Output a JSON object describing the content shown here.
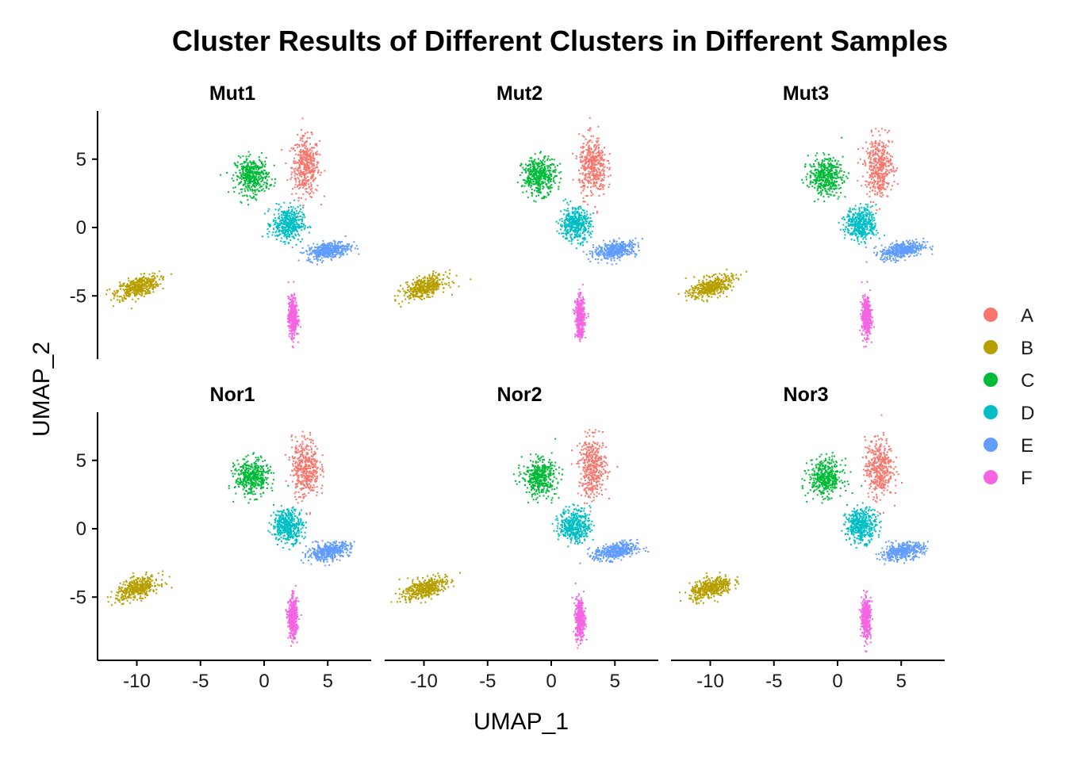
{
  "chart_data": {
    "type": "scatter",
    "title": "Cluster Results of Different Clusters in Different Samples",
    "xlabel": "UMAP_1",
    "ylabel": "UMAP_2",
    "xlim": [
      -13,
      8.5
    ],
    "ylim": [
      -9.5,
      8.5
    ],
    "xticks": [
      -10,
      -5,
      0,
      5
    ],
    "yticks": [
      -5,
      0,
      5
    ],
    "grid": false,
    "legend_position": "right",
    "panels": [
      "Mut1",
      "Mut2",
      "Mut3",
      "Nor1",
      "Nor2",
      "Nor3"
    ],
    "clusters": [
      {
        "name": "A",
        "color": "#F8766D",
        "center": [
          3.2,
          4.5
        ],
        "spread": [
          0.9,
          1.8
        ]
      },
      {
        "name": "B",
        "color": "#B79F00",
        "center": [
          -10.0,
          -4.3
        ],
        "spread": [
          1.4,
          0.6
        ]
      },
      {
        "name": "C",
        "color": "#00BA38",
        "center": [
          -1.0,
          3.8
        ],
        "spread": [
          1.1,
          1.1
        ]
      },
      {
        "name": "D",
        "color": "#00BFC4",
        "center": [
          1.8,
          0.3
        ],
        "spread": [
          1.0,
          1.0
        ]
      },
      {
        "name": "E",
        "color": "#619CFF",
        "center": [
          5.0,
          -1.6
        ],
        "spread": [
          1.4,
          0.5
        ]
      },
      {
        "name": "F",
        "color": "#F564E3",
        "center": [
          2.2,
          -6.5
        ],
        "spread": [
          0.3,
          1.2
        ]
      }
    ]
  }
}
